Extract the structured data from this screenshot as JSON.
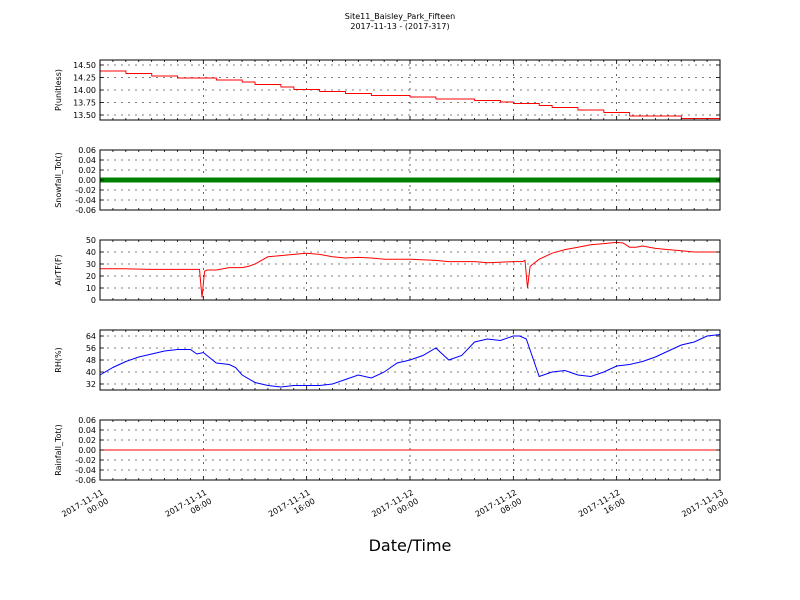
{
  "figure": {
    "title_line1": "Site11_Baisley_Park_Fifteen",
    "title_line2": "2017-11-13 - (2017-317)",
    "xlabel": "Date/Time"
  },
  "chart_data": {
    "type": "line",
    "x_range": [
      "2017-11-11 00:00",
      "2017-11-13 00:00"
    ],
    "x_ticks": [
      [
        "2017-11-11",
        "00:00"
      ],
      [
        "2017-11-11",
        "08:00"
      ],
      [
        "2017-11-11",
        "16:00"
      ],
      [
        "2017-11-12",
        "00:00"
      ],
      [
        "2017-11-12",
        "08:00"
      ],
      [
        "2017-11-12",
        "16:00"
      ],
      [
        "2017-11-13",
        "00:00"
      ]
    ],
    "grid": true,
    "panels": [
      {
        "ylabel": "P(unitless)",
        "color": "#ff0000",
        "marker": "none",
        "ylim": [
          13.4,
          14.6
        ],
        "yticks": [
          "14.50",
          "14.25",
          "14.00",
          "13.75",
          "13.50"
        ],
        "ytick_values": [
          14.5,
          14.25,
          14.0,
          13.75,
          13.5
        ],
        "x_hours": [
          0,
          2,
          2.01,
          4,
          4.01,
          6,
          6.01,
          9,
          9.01,
          11,
          11.01,
          12,
          12.01,
          14,
          14.01,
          15,
          15.01,
          17,
          17.01,
          19,
          19.01,
          21,
          21.01,
          24,
          24.01,
          26,
          26.01,
          29,
          29.01,
          31,
          31.01,
          32,
          32.01,
          34,
          34.01,
          35,
          35.01,
          37,
          37.01,
          39,
          39.01,
          41,
          41.01,
          45,
          45.01,
          48
        ],
        "y": [
          14.38,
          14.38,
          14.33,
          14.33,
          14.28,
          14.28,
          14.24,
          14.24,
          14.2,
          14.2,
          14.16,
          14.16,
          14.11,
          14.11,
          14.06,
          14.06,
          14.01,
          14.01,
          13.97,
          13.97,
          13.93,
          13.93,
          13.89,
          13.89,
          13.86,
          13.86,
          13.82,
          13.82,
          13.79,
          13.79,
          13.76,
          13.76,
          13.73,
          13.73,
          13.69,
          13.69,
          13.65,
          13.65,
          13.6,
          13.6,
          13.55,
          13.55,
          13.48,
          13.48,
          13.43,
          13.43
        ]
      },
      {
        "ylabel": "Snowfall_Tot()",
        "color": "#008000",
        "marker": "dots",
        "ylim": [
          -0.06,
          0.06
        ],
        "yticks": [
          "0.06",
          "0.04",
          "0.02",
          "0.00",
          "-0.02",
          "-0.04",
          "-0.06"
        ],
        "ytick_values": [
          0.06,
          0.04,
          0.02,
          0.0,
          -0.02,
          -0.04,
          -0.06
        ],
        "x_hours": [
          0,
          48
        ],
        "y": [
          0.0,
          0.0
        ]
      },
      {
        "ylabel": "AirTF(F)",
        "color": "#ff0000",
        "marker": "none",
        "ylim": [
          0,
          50
        ],
        "yticks": [
          "50",
          "40",
          "30",
          "20",
          "10",
          "0"
        ],
        "ytick_values": [
          50,
          40,
          30,
          20,
          10,
          0
        ],
        "x_hours": [
          0,
          2,
          4,
          6,
          7.5,
          7.7,
          7.9,
          8.1,
          8.3,
          9,
          10,
          11,
          11.5,
          12,
          13,
          14,
          14.5,
          15,
          15.5,
          16,
          17,
          18,
          19,
          20,
          21,
          22,
          24,
          26,
          27,
          28,
          29,
          30,
          31,
          32,
          32.7,
          32.9,
          33.1,
          33.3,
          34,
          35,
          36,
          37,
          38,
          39,
          40,
          40.5,
          41,
          41.5,
          42,
          43,
          44,
          45,
          46,
          47,
          48
        ],
        "y": [
          26,
          26,
          25.5,
          25.5,
          25.5,
          25.5,
          2,
          24,
          25,
          25,
          27,
          27,
          28,
          30,
          36,
          37,
          37.5,
          38,
          38.5,
          39,
          38,
          36,
          35,
          35.5,
          35,
          34,
          34,
          33,
          32,
          32,
          32,
          31,
          31.5,
          32,
          32,
          33,
          10,
          28,
          34,
          39,
          42,
          44,
          46,
          47,
          48,
          47.5,
          44,
          44,
          45,
          43,
          42,
          41,
          40,
          40,
          40
        ]
      },
      {
        "ylabel": "RH(%)",
        "color": "#0000ff",
        "marker": "none",
        "ylim": [
          28,
          68
        ],
        "yticks": [
          "64",
          "56",
          "48",
          "40",
          "32"
        ],
        "ytick_values": [
          64,
          56,
          48,
          40,
          32
        ],
        "x_hours": [
          0,
          1,
          2,
          3,
          4,
          5,
          6,
          7,
          7.5,
          8,
          9,
          10,
          10.5,
          11,
          12,
          13,
          14,
          15,
          16,
          17,
          18,
          19,
          20,
          21,
          22,
          23,
          24,
          25,
          26,
          27,
          28,
          29,
          30,
          31,
          32,
          32.5,
          33,
          34,
          35,
          36,
          37,
          38,
          39,
          40,
          41,
          42,
          43,
          44,
          45,
          46,
          47,
          48
        ],
        "y": [
          38,
          43,
          47,
          50,
          52,
          54,
          55,
          55,
          52,
          53,
          46,
          45,
          43,
          38,
          33,
          31,
          30,
          31,
          31,
          31,
          32,
          35,
          38,
          36,
          40,
          46,
          48,
          51,
          56,
          48,
          51,
          60,
          62,
          61,
          64,
          64,
          62,
          37,
          40,
          41,
          38,
          37,
          40,
          44,
          45,
          47,
          50,
          54,
          58,
          60,
          64,
          65
        ]
      },
      {
        "ylabel": "Rainfall_Tot()",
        "color": "#ff0000",
        "marker": "none",
        "ylim": [
          -0.06,
          0.06
        ],
        "yticks": [
          "0.06",
          "0.04",
          "0.02",
          "0.00",
          "-0.02",
          "-0.04",
          "-0.06"
        ],
        "ytick_values": [
          0.06,
          0.04,
          0.02,
          0.0,
          -0.02,
          -0.04,
          -0.06
        ],
        "x_hours": [
          0,
          48
        ],
        "y": [
          0.0,
          0.0
        ]
      }
    ]
  }
}
